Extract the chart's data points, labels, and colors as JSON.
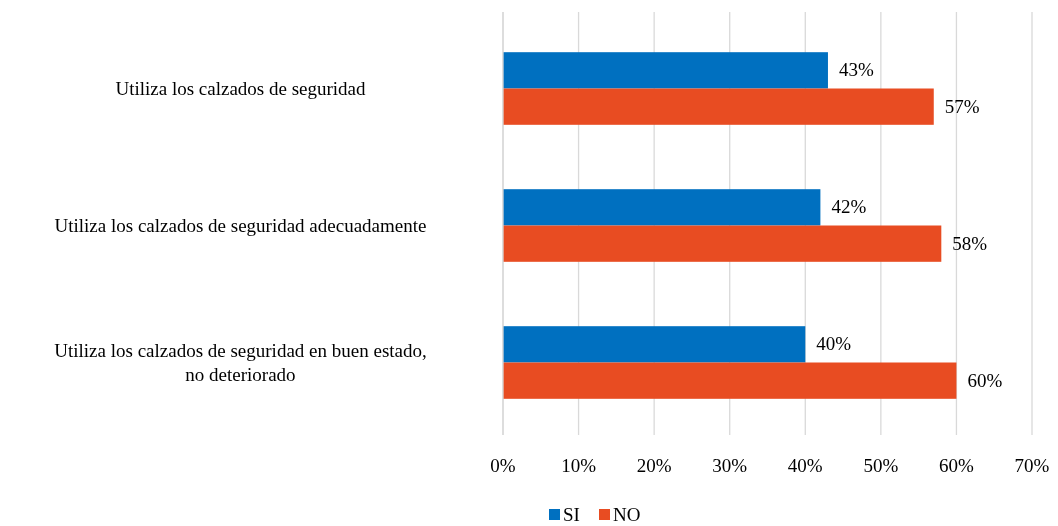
{
  "chart_data": {
    "type": "bar",
    "orientation": "horizontal",
    "categories": [
      "Utiliza los calzados de seguridad",
      "Utiliza los calzados de seguridad adecuadamente",
      "Utiliza los calzados de seguridad en buen estado, no deteriorado"
    ],
    "series": [
      {
        "name": "SI",
        "color": "#0070c0",
        "values": [
          43,
          42,
          40
        ],
        "value_labels": [
          "43%",
          "42%",
          "40%"
        ]
      },
      {
        "name": "NO",
        "color": "#e84c22",
        "values": [
          57,
          58,
          60
        ],
        "value_labels": [
          "57%",
          "58%",
          "60%"
        ]
      }
    ],
    "xlim": [
      0,
      70
    ],
    "xticks": [
      {
        "value": 0,
        "label": "0%"
      },
      {
        "value": 10,
        "label": "10%"
      },
      {
        "value": 20,
        "label": "20%"
      },
      {
        "value": 30,
        "label": "30%"
      },
      {
        "value": 40,
        "label": "40%"
      },
      {
        "value": 50,
        "label": "50%"
      },
      {
        "value": 60,
        "label": "60%"
      },
      {
        "value": 70,
        "label": "70%"
      }
    ],
    "grid": "x",
    "legend": "bottom"
  }
}
